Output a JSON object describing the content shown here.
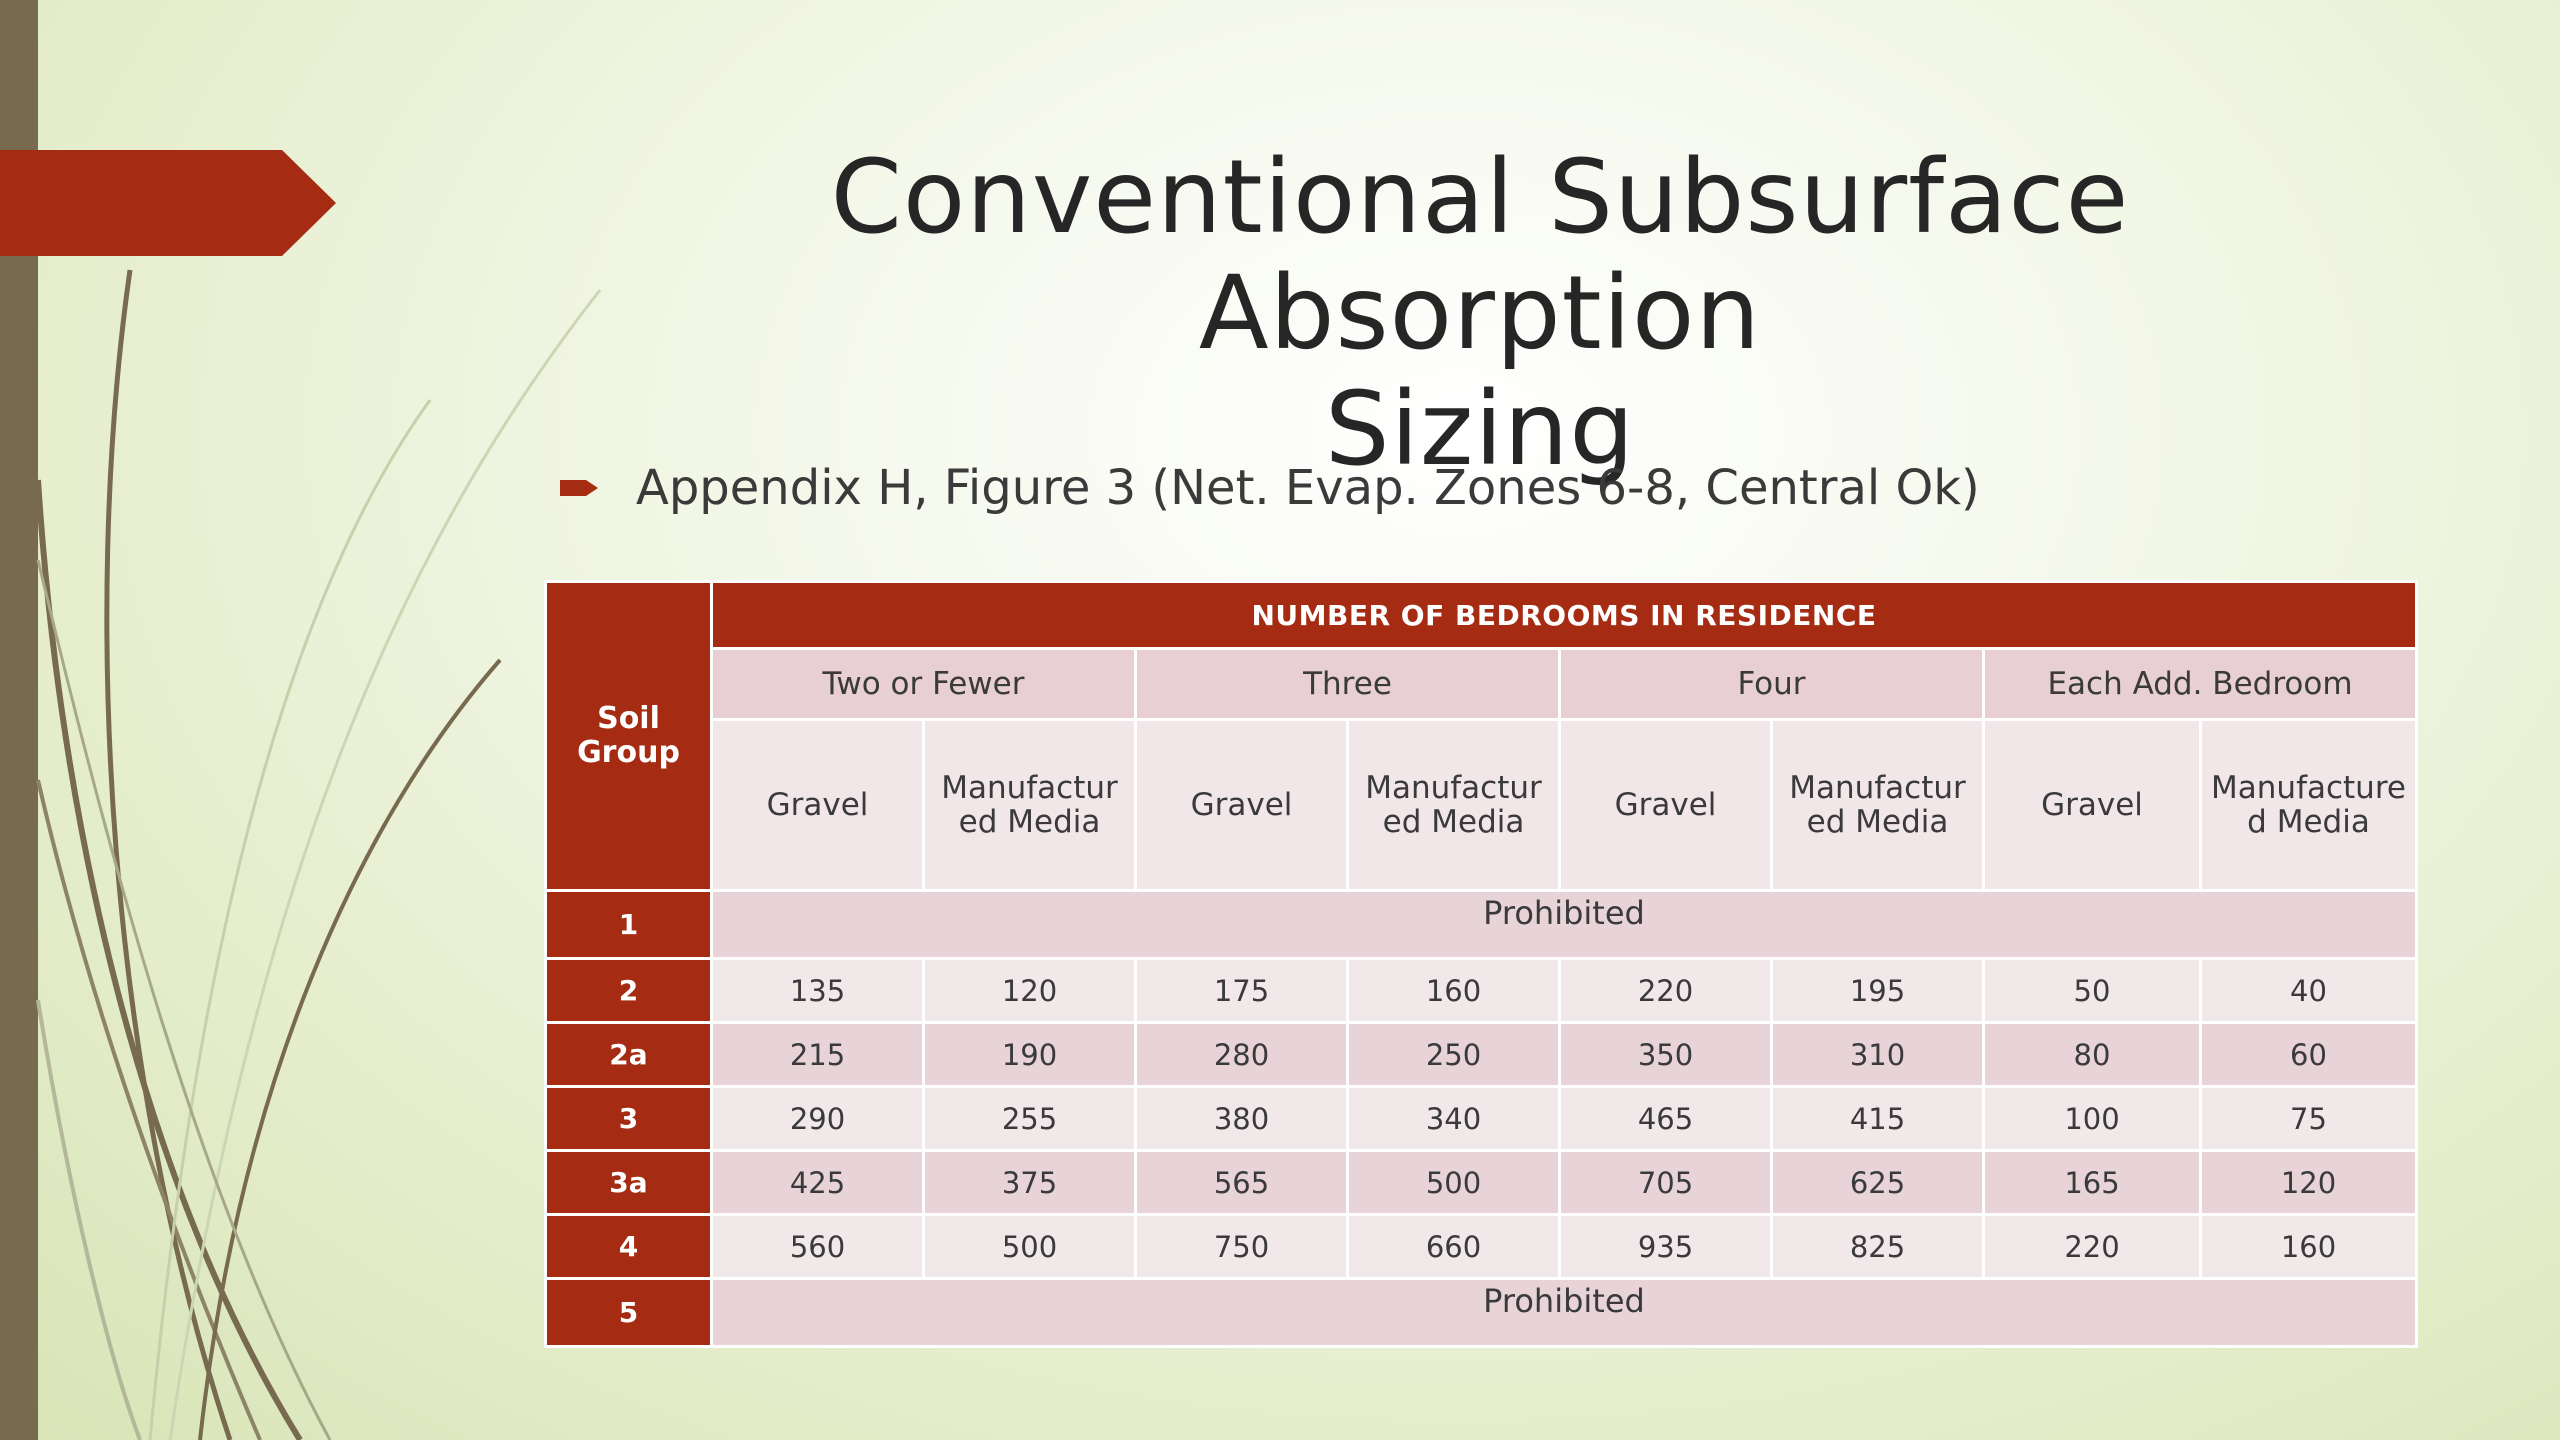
{
  "slide": {
    "title_line1": "Conventional Subsurface Absorption",
    "title_line2": "Sizing",
    "bullet": "Appendix H, Figure 3 (Net. Evap. Zones 6-8, Central Ok)"
  },
  "table": {
    "row_header": "Soil Group",
    "bedrooms_header": "NUMBER OF BEDROOMS IN RESIDENCE",
    "groups": [
      "Two or Fewer",
      "Three",
      "Four",
      "Each Add. Bedroom"
    ],
    "subheaders": [
      "Gravel",
      "Manufactur ed Media",
      "Gravel",
      "Manufactur ed Media",
      "Gravel",
      "Manufactur ed Media",
      "Gravel",
      "Manufacture d Media"
    ],
    "prohibited_text": "Prohibited",
    "rows": [
      {
        "group": "1",
        "prohibited": true,
        "values": []
      },
      {
        "group": "2",
        "prohibited": false,
        "values": [
          "135",
          "120",
          "175",
          "160",
          "220",
          "195",
          "50",
          "40"
        ]
      },
      {
        "group": "2a",
        "prohibited": false,
        "values": [
          "215",
          "190",
          "280",
          "250",
          "350",
          "310",
          "80",
          "60"
        ]
      },
      {
        "group": "3",
        "prohibited": false,
        "values": [
          "290",
          "255",
          "380",
          "340",
          "465",
          "415",
          "100",
          "75"
        ]
      },
      {
        "group": "3a",
        "prohibited": false,
        "values": [
          "425",
          "375",
          "565",
          "500",
          "705",
          "625",
          "165",
          "120"
        ]
      },
      {
        "group": "4",
        "prohibited": false,
        "values": [
          "560",
          "500",
          "750",
          "660",
          "935",
          "825",
          "220",
          "160"
        ]
      },
      {
        "group": "5",
        "prohibited": true,
        "values": []
      }
    ]
  },
  "colors": {
    "accent_red": "#a52b12",
    "left_bar": "#776a4f",
    "cell_pink": "#e8d4d8",
    "cell_light": "#f1e8ea"
  }
}
